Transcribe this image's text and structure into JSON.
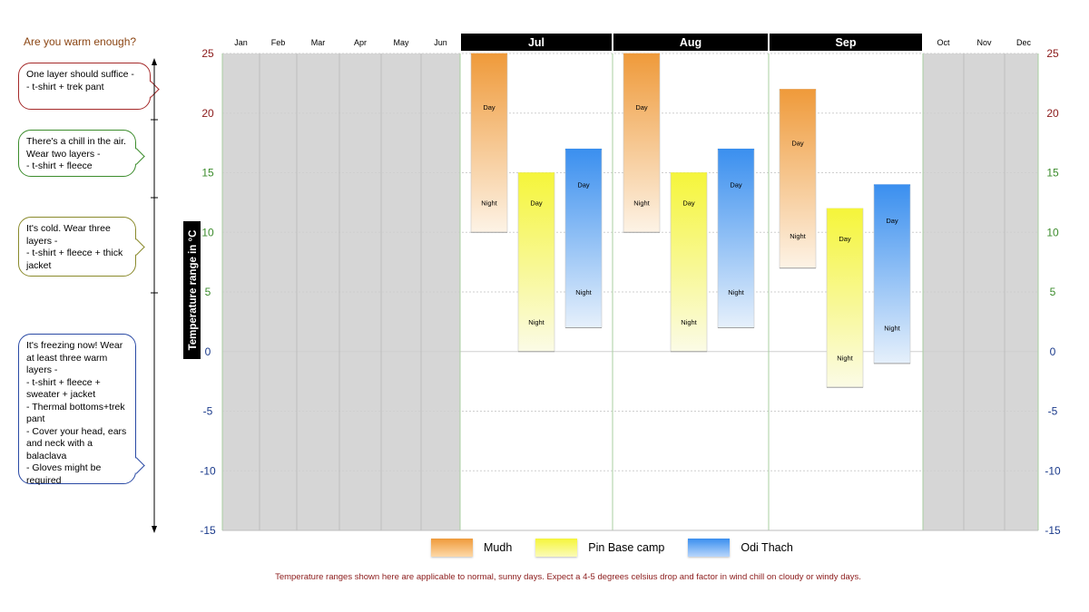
{
  "side": {
    "title": "Are you warm enough?",
    "callouts": [
      {
        "text": "One layer should suffice -\n- t-shirt + trek pant",
        "color": "#a52a2a"
      },
      {
        "text": "There's a chill in the air. Wear two layers -\n- t-shirt + fleece",
        "color": "#3c8c2c"
      },
      {
        "text": "It's cold. Wear three layers -\n- t-shirt + fleece + thick jacket",
        "color": "#8a8a2c"
      },
      {
        "text": "It's freezing now! Wear at least three warm layers -\n- t-shirt + fleece + sweater + jacket\n- Thermal bottoms+trek pant\n- Cover your head, ears and neck with a balaclava\n-   Gloves might be required",
        "color": "#2a4aa5"
      }
    ]
  },
  "chart_data": {
    "type": "bar",
    "ylabel": "Temperature range in °C",
    "ylim": [
      -15,
      25
    ],
    "yticks": [
      25,
      20,
      15,
      10,
      5,
      0,
      -5,
      -10,
      -15
    ],
    "ytick_colors": {
      "warm": "#8b1a1a",
      "mild": "#3c8c2c",
      "cold": "#1a3a8b"
    },
    "months": [
      "Jan",
      "Feb",
      "Mar",
      "Apr",
      "May",
      "Jun",
      "Jul",
      "Aug",
      "Sep",
      "Oct",
      "Nov",
      "Dec"
    ],
    "active_months": [
      "Jul",
      "Aug",
      "Sep"
    ],
    "series": [
      {
        "name": "Mudh",
        "color_top": "#ef9a3a",
        "color_bottom": "#fdf3e6"
      },
      {
        "name": "Pin Base camp",
        "color_top": "#f5f53a",
        "color_bottom": "#fbfbe6"
      },
      {
        "name": "Odi Thach",
        "color_top": "#3a8fef",
        "color_bottom": "#e6f0fb"
      }
    ],
    "ranges": {
      "Jul": [
        [
          10,
          25
        ],
        [
          0,
          15
        ],
        [
          2,
          17
        ]
      ],
      "Aug": [
        [
          10,
          25
        ],
        [
          0,
          15
        ],
        [
          2,
          17
        ]
      ],
      "Sep": [
        [
          7,
          22
        ],
        [
          -3,
          12
        ],
        [
          -1,
          14
        ]
      ]
    },
    "day_label": "Day",
    "night_label": "Night",
    "day_positions": {
      "Jul": [
        20.5,
        12.5,
        14
      ],
      "Aug": [
        20.5,
        12.5,
        14
      ],
      "Sep": [
        17.5,
        9.5,
        11
      ]
    },
    "night_positions": {
      "Jul": [
        12.5,
        2.5,
        5
      ],
      "Aug": [
        12.5,
        2.5,
        5
      ],
      "Sep": [
        9.7,
        -0.5,
        2
      ]
    }
  },
  "legend": [
    "Mudh",
    "Pin Base camp",
    "Odi Thach"
  ],
  "footnote": "Temperature ranges shown here are applicable to normal, sunny days. Expect a 4-5 degrees celsius drop and factor in wind chill on cloudy or windy days."
}
